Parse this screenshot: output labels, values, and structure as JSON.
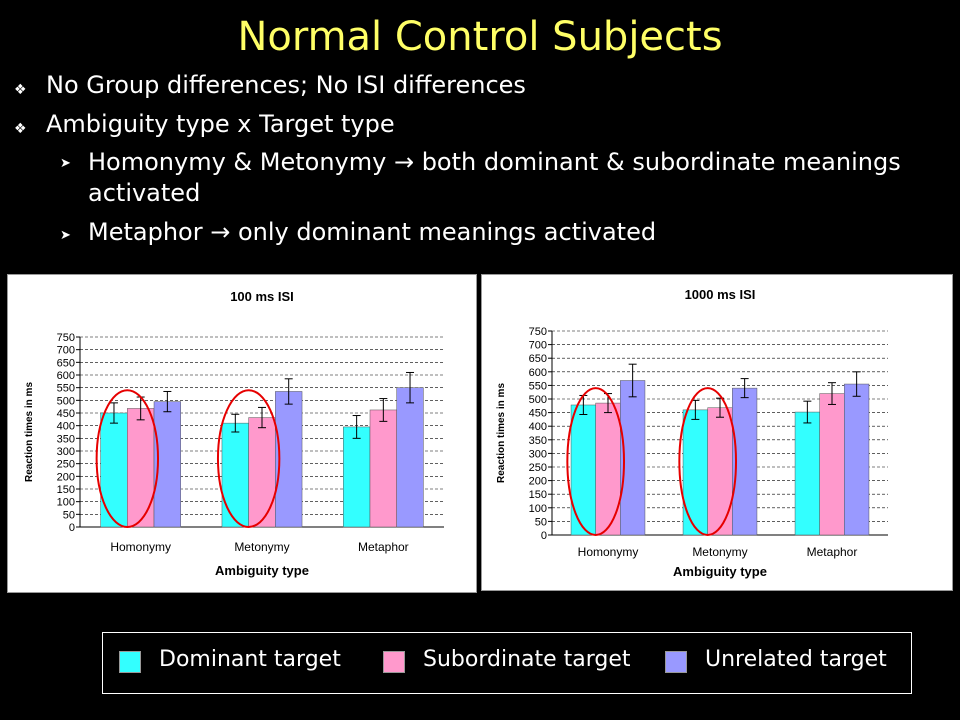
{
  "slide": {
    "title": "Normal Control Subjects",
    "bullets": [
      "No Group differences; No ISI differences",
      "Ambiguity type x Target type"
    ],
    "sub_bullets": [
      "Homonymy & Metonymy → both dominant & subordinate meanings",
      "activated",
      "Metaphor → only dominant meanings activated"
    ]
  },
  "legend": {
    "items": [
      {
        "label": "Dominant target",
        "color": "#33ffff"
      },
      {
        "label": "Subordinate target",
        "color": "#ff99cc"
      },
      {
        "label": "Unrelated target",
        "color": "#9999ff"
      }
    ]
  },
  "chart_data": [
    {
      "type": "bar",
      "title": "100 ms ISI",
      "xlabel": "Ambiguity type",
      "ylabel": "Reaction times in ms",
      "ylim": [
        0,
        750
      ],
      "ytick_step": 50,
      "grid": true,
      "categories": [
        "Homonymy",
        "Metonymy",
        "Metaphor"
      ],
      "series": [
        {
          "name": "Dominant target",
          "color": "#33ffff",
          "values": [
            450,
            410,
            395
          ],
          "errors": [
            40,
            35,
            45
          ]
        },
        {
          "name": "Subordinate target",
          "color": "#ff99cc",
          "values": [
            468,
            432,
            462
          ],
          "errors": [
            45,
            40,
            45
          ]
        },
        {
          "name": "Unrelated target",
          "color": "#9999ff",
          "values": [
            495,
            535,
            550
          ],
          "errors": [
            40,
            50,
            60
          ]
        }
      ],
      "circled_categories": [
        "Homonymy",
        "Metonymy"
      ]
    },
    {
      "type": "bar",
      "title": "1000 ms ISI",
      "xlabel": "Ambiguity type",
      "ylabel": "Reaction times in ms",
      "ylim": [
        0,
        750
      ],
      "ytick_step": 50,
      "grid": true,
      "categories": [
        "Homonymy",
        "Metonymy",
        "Metaphor"
      ],
      "series": [
        {
          "name": "Dominant target",
          "color": "#33ffff",
          "values": [
            478,
            460,
            452
          ],
          "errors": [
            35,
            35,
            40
          ]
        },
        {
          "name": "Subordinate target",
          "color": "#ff99cc",
          "values": [
            485,
            468,
            520
          ],
          "errors": [
            35,
            35,
            40
          ]
        },
        {
          "name": "Unrelated target",
          "color": "#9999ff",
          "values": [
            568,
            540,
            555
          ],
          "errors": [
            60,
            35,
            45
          ]
        }
      ],
      "circled_categories": [
        "Homonymy",
        "Metonymy"
      ]
    }
  ]
}
